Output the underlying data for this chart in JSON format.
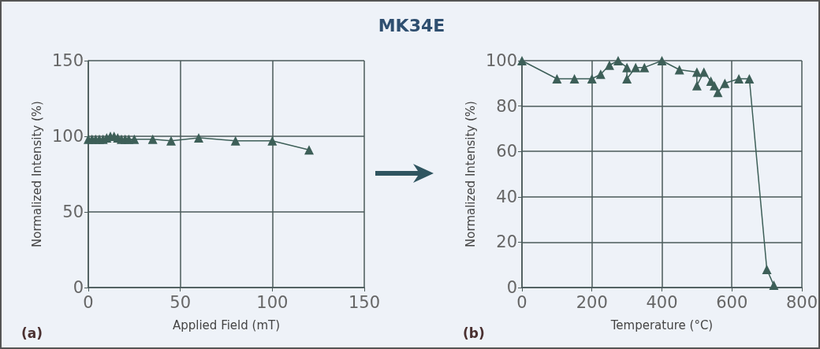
{
  "chart_data": [
    {
      "type": "line",
      "title": "MK34E",
      "xlabel": "Applied Field (mT)",
      "ylabel": "Normalized Intensity (%)",
      "annotations": [
        "(a)"
      ],
      "x": [
        0,
        2,
        4,
        6,
        8,
        10,
        12,
        14,
        16,
        18,
        20,
        22,
        25,
        35,
        45,
        60,
        80,
        100,
        120
      ],
      "values": [
        98,
        98,
        98,
        98,
        98,
        99,
        100,
        100,
        99,
        98,
        98,
        98,
        98,
        98,
        97,
        99,
        97,
        97,
        91
      ],
      "color": "#3d5f58",
      "xlim": [
        0,
        150
      ],
      "xticks": [
        0,
        50,
        100,
        150
      ],
      "ylim": [
        0,
        150
      ],
      "yticks": [
        0,
        50,
        100,
        150
      ],
      "grid": true,
      "marker": "triangle",
      "line_style": "solid"
    },
    {
      "type": "line",
      "xlabel": "Temperature (°C)",
      "ylabel": "Normalized Intensity (%)",
      "annotations": [
        "(b)"
      ],
      "x": [
        0,
        100,
        150,
        200,
        225,
        250,
        275,
        300,
        300,
        325,
        350,
        400,
        450,
        500,
        500,
        520,
        540,
        550,
        560,
        580,
        620,
        650,
        700,
        720
      ],
      "values": [
        100,
        92,
        92,
        92,
        94,
        98,
        100,
        97,
        92,
        97,
        97,
        100,
        96,
        95,
        89,
        95,
        91,
        89,
        86,
        90,
        92,
        92,
        8,
        1
      ],
      "color": "#3d5f58",
      "xlim": [
        0,
        800
      ],
      "xticks": [
        0,
        200,
        400,
        600,
        800
      ],
      "ylim": [
        0,
        100
      ],
      "yticks": [
        0,
        20,
        40,
        60,
        80,
        100
      ],
      "grid": true,
      "marker": "triangle",
      "line_style": "solid"
    }
  ]
}
